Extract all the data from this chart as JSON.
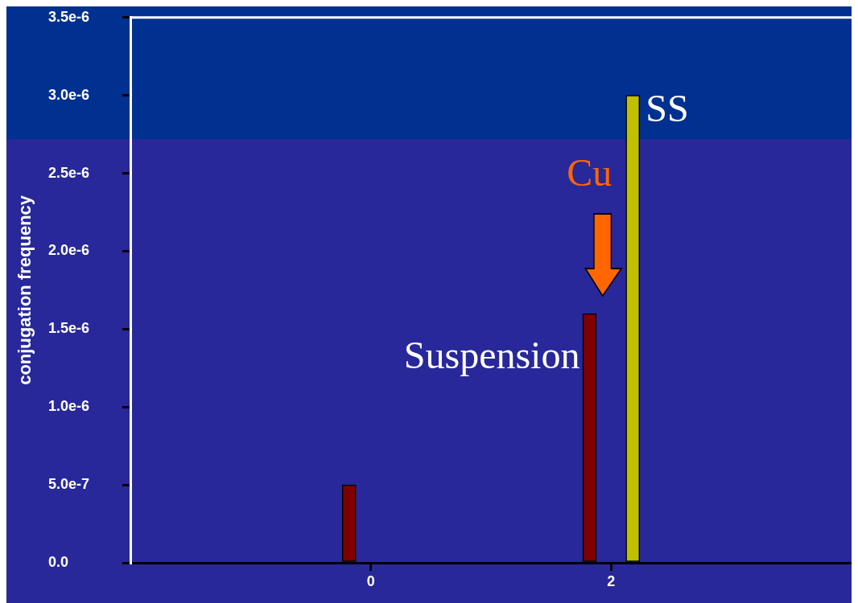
{
  "chart_data": {
    "type": "bar",
    "ylabel": "conjugation frequency",
    "xlim": [
      -2,
      4
    ],
    "xticks": [
      0,
      2
    ],
    "ylim": [
      0,
      3.5e-06
    ],
    "yticks": [
      {
        "value": 0,
        "label": "0.0"
      },
      {
        "value": 5e-07,
        "label": "5.0e-7"
      },
      {
        "value": 1e-06,
        "label": "1.0e-6"
      },
      {
        "value": 1.5e-06,
        "label": "1.5e-6"
      },
      {
        "value": 2e-06,
        "label": "2.0e-6"
      },
      {
        "value": 2.5e-06,
        "label": "2.5e-6"
      },
      {
        "value": 3e-06,
        "label": "3.0e-6"
      },
      {
        "value": 3.5e-06,
        "label": "3.5e-6"
      }
    ],
    "series": [
      {
        "name": "Suspension",
        "color": "#7f0000",
        "x": [
          -0.18,
          1.82
        ],
        "values": [
          5e-07,
          1.6e-06
        ]
      },
      {
        "name": "SS",
        "color": "#c0c000",
        "x": [
          2.18
        ],
        "values": [
          3e-06
        ]
      }
    ],
    "annotations": [
      "Cu"
    ],
    "grid": false,
    "legend": false
  }
}
